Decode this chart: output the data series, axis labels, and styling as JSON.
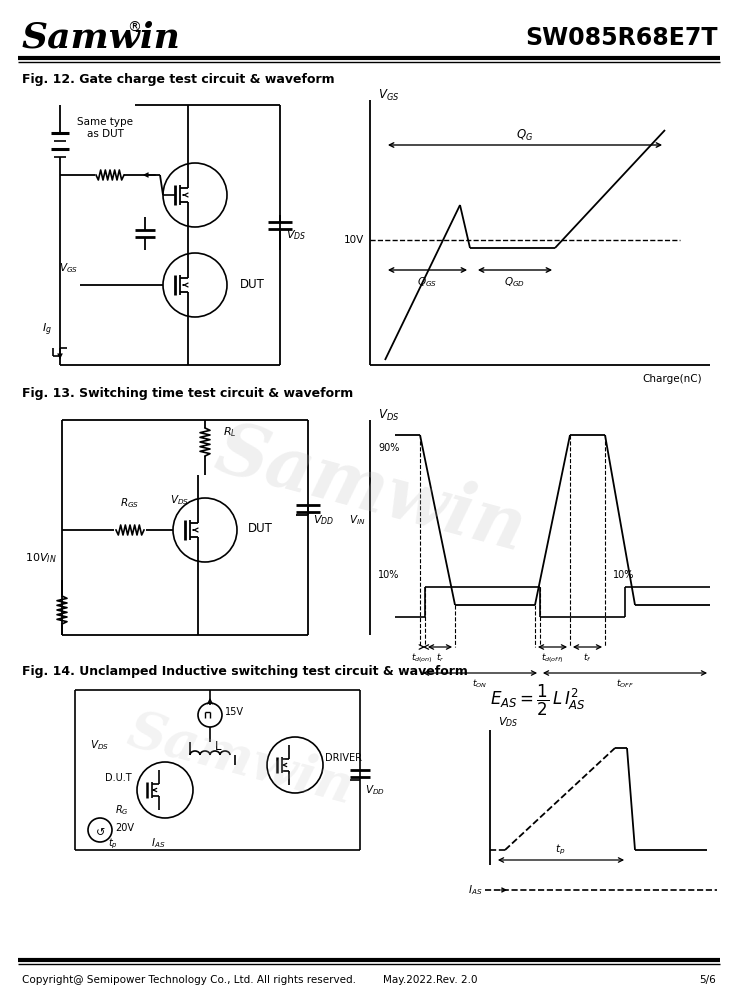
{
  "title_company": "Samwin",
  "title_part": "SW085R68E7T",
  "fig12_title": "Fig. 12. Gate charge test circuit & waveform",
  "fig13_title": "Fig. 13. Switching time test circuit & waveform",
  "fig14_title": "Fig. 14. Unclamped Inductive switching test circuit & waveform",
  "footer_left": "Copyright@ Semipower Technology Co., Ltd. All rights reserved.",
  "footer_mid": "May.2022.Rev. 2.0",
  "footer_right": "5/6",
  "bg_color": "#ffffff",
  "line_color": "#000000",
  "watermark_color": "#d0d0d0"
}
